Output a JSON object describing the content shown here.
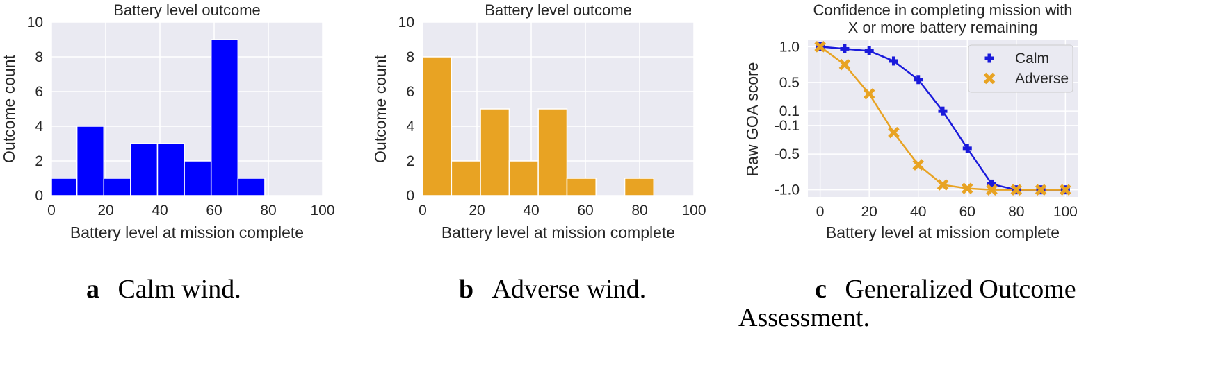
{
  "chart_data": [
    {
      "type": "bar",
      "subtype": "histogram",
      "title": "Battery level outcome",
      "xlabel": "Battery level at mission complete",
      "ylabel": "Outcome count",
      "xlim": [
        0,
        100
      ],
      "ylim": [
        0,
        10
      ],
      "xticks": [
        0,
        20,
        40,
        60,
        80,
        100
      ],
      "yticks": [
        0,
        2,
        4,
        6,
        8,
        10
      ],
      "grid": true,
      "color": "#0000ff",
      "bin_edges": [
        0,
        9.4,
        19.3,
        29.2,
        39.1,
        49.0,
        58.9,
        68.8,
        78.7,
        88.6
      ],
      "values": [
        1,
        4,
        1,
        3,
        3,
        2,
        9,
        1,
        0
      ],
      "caption_letter": "a",
      "caption": "Calm wind."
    },
    {
      "type": "bar",
      "subtype": "histogram",
      "title": "Battery level outcome",
      "xlabel": "Battery level at mission complete",
      "ylabel": "Outcome count",
      "xlim": [
        0,
        100
      ],
      "ylim": [
        0,
        10
      ],
      "xticks": [
        0,
        20,
        40,
        60,
        80,
        100
      ],
      "yticks": [
        0,
        2,
        4,
        6,
        8,
        10
      ],
      "grid": true,
      "color": "#e8a323",
      "bin_edges": [
        0,
        10.6,
        21.3,
        31.9,
        42.6,
        53.2,
        63.9,
        74.5,
        85.2
      ],
      "values": [
        8,
        2,
        5,
        2,
        5,
        1,
        0,
        1
      ],
      "caption_letter": "b",
      "caption": "Adverse wind."
    },
    {
      "type": "line",
      "title": "Confidence in completing mission with X or more battery remaining",
      "title_lines": [
        "Confidence in completing mission with",
        "X or more battery remaining"
      ],
      "xlabel": "Battery level at mission complete",
      "ylabel": "Raw GOA score",
      "xlim": [
        -5,
        105
      ],
      "ylim": [
        -1.1,
        1.1
      ],
      "xticks": [
        0,
        20,
        40,
        60,
        80,
        100
      ],
      "yticks": [
        1.0,
        0.5,
        0.1,
        -0.1,
        -0.5,
        -1.0
      ],
      "ytick_labels": [
        "1.0",
        "0.5",
        "0.1",
        "-0.1",
        "-0.5",
        "-1.0"
      ],
      "grid": true,
      "legend_position": "top-right",
      "x": [
        0,
        10,
        20,
        30,
        40,
        50,
        60,
        70,
        80,
        90,
        100
      ],
      "series": [
        {
          "name": "Calm",
          "marker": "plus",
          "color": "#1a1adb",
          "values": [
            1.0,
            0.97,
            0.94,
            0.8,
            0.54,
            0.1,
            -0.42,
            -0.92,
            -1.0,
            -1.0,
            -1.0
          ]
        },
        {
          "name": "Adverse",
          "marker": "x",
          "color": "#e8a323",
          "values": [
            1.0,
            0.75,
            0.34,
            -0.2,
            -0.65,
            -0.93,
            -0.98,
            -1.0,
            -1.0,
            -1.0,
            -1.0
          ]
        }
      ],
      "caption_letter": "c",
      "caption": "Generalized Outcome Assessment."
    }
  ]
}
